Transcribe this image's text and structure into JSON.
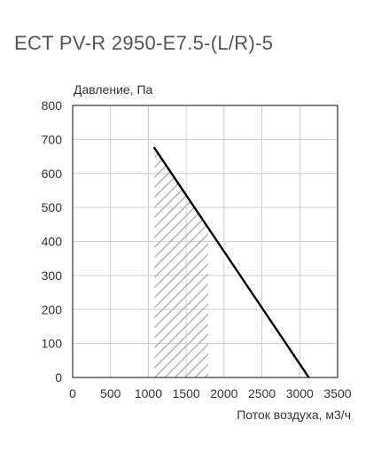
{
  "chart_data": {
    "type": "line",
    "title": "ECT PV-R 2950-E7.5-(L/R)-5",
    "xlabel": "Поток воздуха, м3/ч",
    "ylabel": "Давление, Па",
    "xlim": [
      0,
      3500
    ],
    "ylim": [
      0,
      800
    ],
    "x_ticks": [
      0,
      500,
      1000,
      1500,
      2000,
      2500,
      3000,
      3500
    ],
    "y_ticks": [
      0,
      100,
      200,
      300,
      400,
      500,
      600,
      700,
      800
    ],
    "grid": true,
    "series": [
      {
        "x": [
          1080,
          3120
        ],
        "y": [
          675,
          0
        ],
        "color": "#000000"
      }
    ],
    "shaded_region": {
      "x_range": [
        1080,
        1790
      ],
      "pattern": "diagonal-hatch",
      "color": "#b0b0b0"
    }
  }
}
